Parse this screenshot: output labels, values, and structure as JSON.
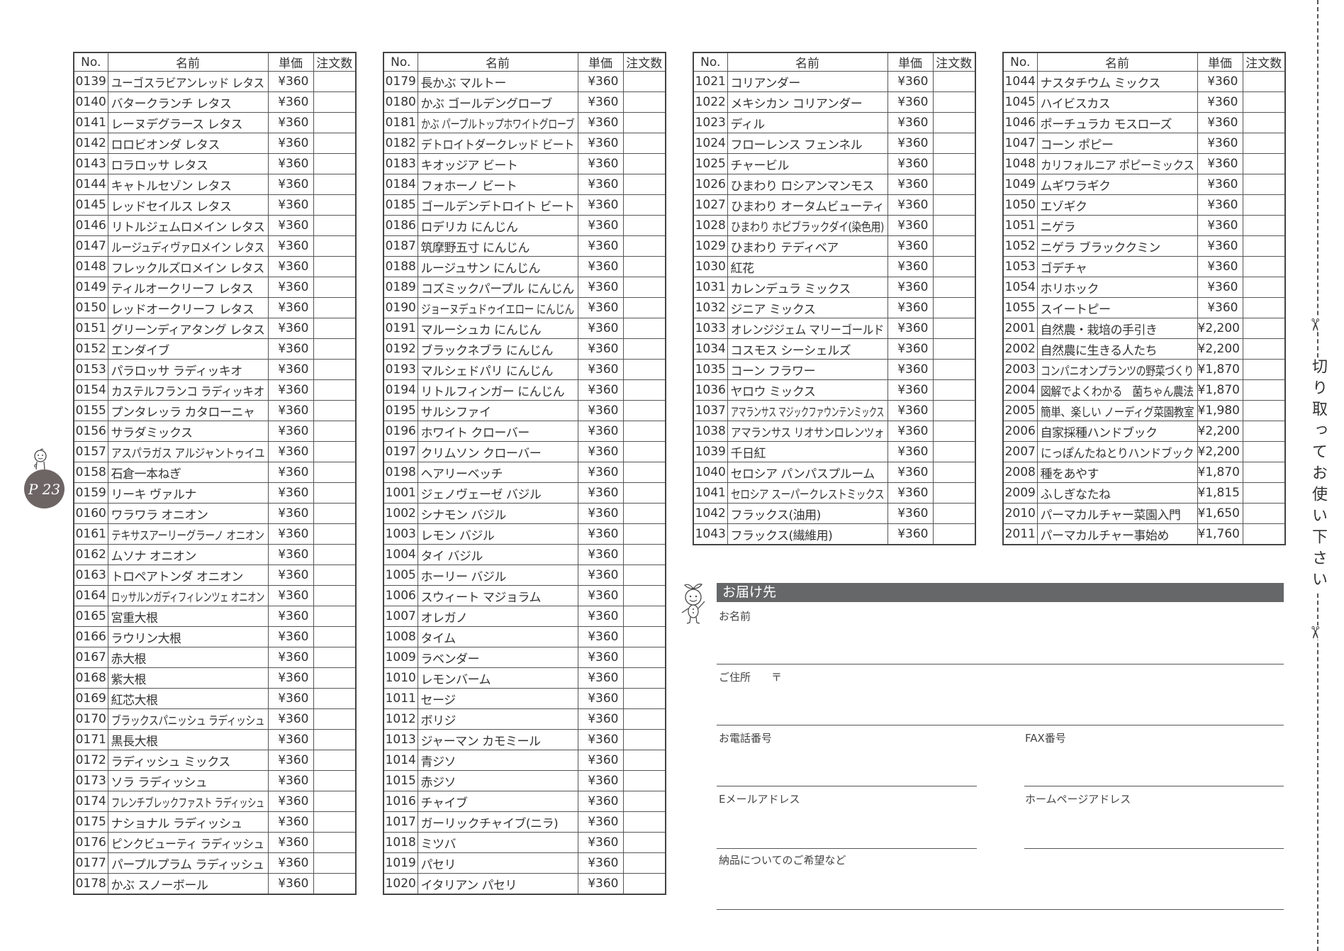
{
  "headers": {
    "no": "No.",
    "name": "名前",
    "price": "単価",
    "qty": "注文数"
  },
  "tables": [
    [
      [
        "0139",
        "ユーゴスラビアンレッド レタス",
        "¥360"
      ],
      [
        "0140",
        "バタークランチ レタス",
        "¥360"
      ],
      [
        "0141",
        "レーヌデグラース レタス",
        "¥360"
      ],
      [
        "0142",
        "ロロビオンダ レタス",
        "¥360"
      ],
      [
        "0143",
        "ロラロッサ レタス",
        "¥360"
      ],
      [
        "0144",
        "キャトルセゾン レタス",
        "¥360"
      ],
      [
        "0145",
        "レッドセイルス レタス",
        "¥360"
      ],
      [
        "0146",
        "リトルジェムロメイン レタス",
        "¥360"
      ],
      [
        "0147",
        "ルージュディヴァロメイン レタス",
        "¥360"
      ],
      [
        "0148",
        "フレックルズロメイン レタス",
        "¥360"
      ],
      [
        "0149",
        "ティルオークリーフ レタス",
        "¥360"
      ],
      [
        "0150",
        "レッドオークリーフ レタス",
        "¥360"
      ],
      [
        "0151",
        "グリーンディアタング レタス",
        "¥360"
      ],
      [
        "0152",
        "エンダイブ",
        "¥360"
      ],
      [
        "0153",
        "パラロッサ ラディッキオ",
        "¥360"
      ],
      [
        "0154",
        "カステルフランコ ラディッキオ",
        "¥360"
      ],
      [
        "0155",
        "プンタレッラ カタローニャ",
        "¥360"
      ],
      [
        "0156",
        "サラダミックス",
        "¥360"
      ],
      [
        "0157",
        "アスパラガス アルジャントゥイユ",
        "¥360"
      ],
      [
        "0158",
        "石倉一本ねぎ",
        "¥360"
      ],
      [
        "0159",
        "リーキ ヴァルナ",
        "¥360"
      ],
      [
        "0160",
        "ワラワラ オニオン",
        "¥360"
      ],
      [
        "0161",
        "テキサスアーリーグラーノ オニオン",
        "¥360"
      ],
      [
        "0162",
        "ムソナ オニオン",
        "¥360"
      ],
      [
        "0163",
        "トロペアトンダ オニオン",
        "¥360"
      ],
      [
        "0164",
        "ロッサルンガディフィレンツェ オニオン",
        "¥360"
      ],
      [
        "0165",
        "宮重大根",
        "¥360"
      ],
      [
        "0166",
        "ラウリン大根",
        "¥360"
      ],
      [
        "0167",
        "赤大根",
        "¥360"
      ],
      [
        "0168",
        "紫大根",
        "¥360"
      ],
      [
        "0169",
        "紅芯大根",
        "¥360"
      ],
      [
        "0170",
        "ブラックスパニッシュ ラディッシュ",
        "¥360"
      ],
      [
        "0171",
        "黒長大根",
        "¥360"
      ],
      [
        "0172",
        "ラディッシュ ミックス",
        "¥360"
      ],
      [
        "0173",
        "ソラ ラディッシュ",
        "¥360"
      ],
      [
        "0174",
        "フレンチブレックファスト ラディッシュ",
        "¥360"
      ],
      [
        "0175",
        "ナショナル ラディッシュ",
        "¥360"
      ],
      [
        "0176",
        "ピンクビューティ ラディッシュ",
        "¥360"
      ],
      [
        "0177",
        "パープルプラム ラディッシュ",
        "¥360"
      ],
      [
        "0178",
        "かぶ スノーボール",
        "¥360"
      ]
    ],
    [
      [
        "0179",
        "長かぶ マルトー",
        "¥360"
      ],
      [
        "0180",
        "かぶ ゴールデングローブ",
        "¥360"
      ],
      [
        "0181",
        "かぶ パープルトップホワイトグローブ",
        "¥360"
      ],
      [
        "0182",
        "デトロイトダークレッド ビート",
        "¥360"
      ],
      [
        "0183",
        "キオッジア ビート",
        "¥360"
      ],
      [
        "0184",
        "フォホーノ ビート",
        "¥360"
      ],
      [
        "0185",
        "ゴールデンデトロイト ビート",
        "¥360"
      ],
      [
        "0186",
        "ロデリカ にんじん",
        "¥360"
      ],
      [
        "0187",
        "筑摩野五寸 にんじん",
        "¥360"
      ],
      [
        "0188",
        "ルージュサン にんじん",
        "¥360"
      ],
      [
        "0189",
        "コズミックパープル にんじん",
        "¥360"
      ],
      [
        "0190",
        "ジョーヌデュドゥイエロー にんじん",
        "¥360"
      ],
      [
        "0191",
        "マルーシュカ にんじん",
        "¥360"
      ],
      [
        "0192",
        "ブラックネブラ にんじん",
        "¥360"
      ],
      [
        "0193",
        "マルシェドパリ にんじん",
        "¥360"
      ],
      [
        "0194",
        "リトルフィンガー にんじん",
        "¥360"
      ],
      [
        "0195",
        "サルシファイ",
        "¥360"
      ],
      [
        "0196",
        "ホワイト クローバー",
        "¥360"
      ],
      [
        "0197",
        "クリムソン クローバー",
        "¥360"
      ],
      [
        "0198",
        "ヘアリーベッチ",
        "¥360"
      ],
      [
        "1001",
        "ジェノヴェーゼ バジル",
        "¥360"
      ],
      [
        "1002",
        "シナモン バジル",
        "¥360"
      ],
      [
        "1003",
        "レモン バジル",
        "¥360"
      ],
      [
        "1004",
        "タイ バジル",
        "¥360"
      ],
      [
        "1005",
        "ホーリー バジル",
        "¥360"
      ],
      [
        "1006",
        "スウィート マジョラム",
        "¥360"
      ],
      [
        "1007",
        "オレガノ",
        "¥360"
      ],
      [
        "1008",
        "タイム",
        "¥360"
      ],
      [
        "1009",
        "ラベンダー",
        "¥360"
      ],
      [
        "1010",
        "レモンバーム",
        "¥360"
      ],
      [
        "1011",
        "セージ",
        "¥360"
      ],
      [
        "1012",
        "ボリジ",
        "¥360"
      ],
      [
        "1013",
        "ジャーマン カモミール",
        "¥360"
      ],
      [
        "1014",
        "青ジソ",
        "¥360"
      ],
      [
        "1015",
        "赤ジソ",
        "¥360"
      ],
      [
        "1016",
        "チャイブ",
        "¥360"
      ],
      [
        "1017",
        "ガーリックチャイブ(ニラ)",
        "¥360"
      ],
      [
        "1018",
        "ミツバ",
        "¥360"
      ],
      [
        "1019",
        "パセリ",
        "¥360"
      ],
      [
        "1020",
        "イタリアン パセリ",
        "¥360"
      ]
    ],
    [
      [
        "1021",
        "コリアンダー",
        "¥360"
      ],
      [
        "1022",
        "メキシカン コリアンダー",
        "¥360"
      ],
      [
        "1023",
        "ディル",
        "¥360"
      ],
      [
        "1024",
        "フローレンス フェンネル",
        "¥360"
      ],
      [
        "1025",
        "チャービル",
        "¥360"
      ],
      [
        "1026",
        "ひまわり ロシアンマンモス",
        "¥360"
      ],
      [
        "1027",
        "ひまわり オータムビューティ",
        "¥360"
      ],
      [
        "1028",
        "ひまわり ホピブラックダイ(染色用)",
        "¥360"
      ],
      [
        "1029",
        "ひまわり テディベア",
        "¥360"
      ],
      [
        "1030",
        "紅花",
        "¥360"
      ],
      [
        "1031",
        "カレンデュラ ミックス",
        "¥360"
      ],
      [
        "1032",
        "ジニア ミックス",
        "¥360"
      ],
      [
        "1033",
        "オレンジジェム マリーゴールド",
        "¥360"
      ],
      [
        "1034",
        "コスモス シーシェルズ",
        "¥360"
      ],
      [
        "1035",
        "コーン フラワー",
        "¥360"
      ],
      [
        "1036",
        "ヤロウ ミックス",
        "¥360"
      ],
      [
        "1037",
        "アマランサス マジックファウンテンミックス",
        "¥360"
      ],
      [
        "1038",
        "アマランサス リオサンロレンツォ",
        "¥360"
      ],
      [
        "1039",
        "千日紅",
        "¥360"
      ],
      [
        "1040",
        "セロシア パンパスプルーム",
        "¥360"
      ],
      [
        "1041",
        "セロシア スーパークレストミックス",
        "¥360"
      ],
      [
        "1042",
        "フラックス(油用)",
        "¥360"
      ],
      [
        "1043",
        "フラックス(繊維用)",
        "¥360"
      ]
    ],
    [
      [
        "1044",
        "ナスタチウム ミックス",
        "¥360"
      ],
      [
        "1045",
        "ハイビスカス",
        "¥360"
      ],
      [
        "1046",
        "ポーチュラカ モスローズ",
        "¥360"
      ],
      [
        "1047",
        "コーン ポピー",
        "¥360"
      ],
      [
        "1048",
        "カリフォルニア ポピーミックス",
        "¥360"
      ],
      [
        "1049",
        "ムギワラギク",
        "¥360"
      ],
      [
        "1050",
        "エゾギク",
        "¥360"
      ],
      [
        "1051",
        "ニゲラ",
        "¥360"
      ],
      [
        "1052",
        "ニゲラ ブラッククミン",
        "¥360"
      ],
      [
        "1053",
        "ゴデチャ",
        "¥360"
      ],
      [
        "1054",
        "ホリホック",
        "¥360"
      ],
      [
        "1055",
        "スイートピー",
        "¥360"
      ],
      [
        "2001",
        "自然農・栽培の手引き",
        "¥2,200"
      ],
      [
        "2002",
        "自然農に生きる人たち",
        "¥2,200"
      ],
      [
        "2003",
        "コンパニオンプランツの野菜づくり",
        "¥1,870"
      ],
      [
        "2004",
        "図解でよくわかる　菌ちゃん農法",
        "¥1,870"
      ],
      [
        "2005",
        "簡単、楽しい ノーディグ菜園教室",
        "¥1,980"
      ],
      [
        "2006",
        "自家採種ハンドブック",
        "¥2,200"
      ],
      [
        "2007",
        "にっぽんたねとりハンドブック",
        "¥2,200"
      ],
      [
        "2008",
        "種をあやす",
        "¥1,870"
      ],
      [
        "2009",
        "ふしぎなたね",
        "¥1,815"
      ],
      [
        "2010",
        "パーマカルチャー菜園入門",
        "¥1,650"
      ],
      [
        "2011",
        "パーマカルチャー事始め",
        "¥1,760"
      ]
    ]
  ],
  "page_badge": "P 23",
  "form": {
    "title": "お届け先",
    "name_label": "お名前",
    "address_label": "ご住所",
    "postal_mark": "〒",
    "phone_label": "お電話番号",
    "fax_label": "FAX番号",
    "email_label": "Eメールアドレス",
    "homepage_label": "ホームページアドレス",
    "notes_label": "納品についてのご希望など"
  },
  "cut_text": "切り取ってお使い下さい",
  "colors": {
    "header_bar": "#666769",
    "badge": "#6d6564"
  }
}
